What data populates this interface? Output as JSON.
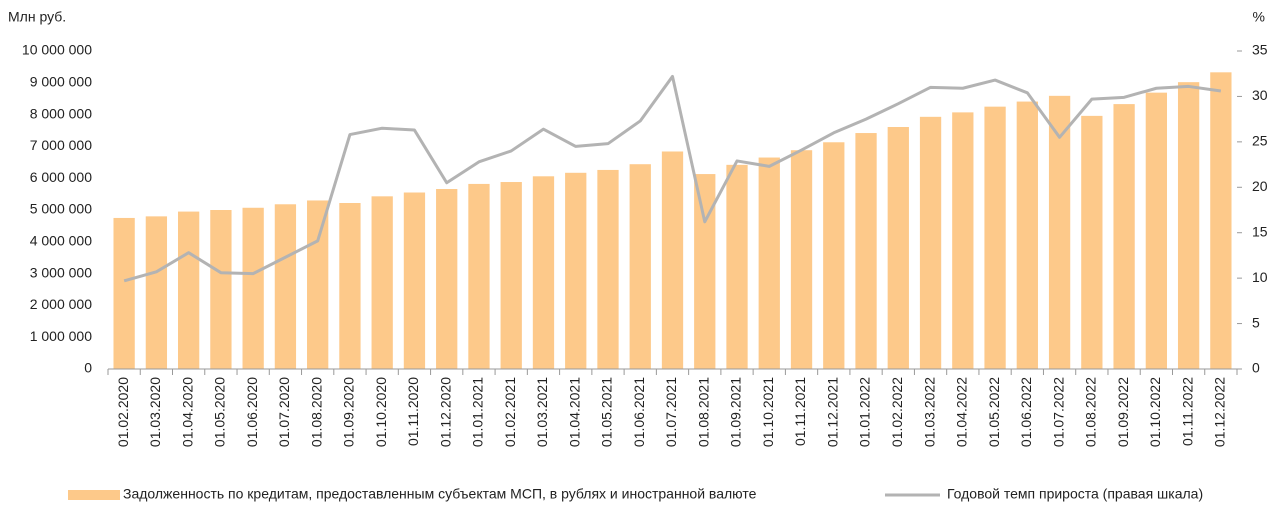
{
  "chart_data": {
    "type": "bar-line",
    "y_label": "Млн руб.",
    "y2_label": "%",
    "categories": [
      "01.02.2020",
      "01.03.2020",
      "01.04.2020",
      "01.05.2020",
      "01.06.2020",
      "01.07.2020",
      "01.08.2020",
      "01.09.2020",
      "01.10.2020",
      "01.11.2020",
      "01.12.2020",
      "01.01.2021",
      "01.02.2021",
      "01.03.2021",
      "01.04.2021",
      "01.05.2021",
      "01.06.2021",
      "01.07.2021",
      "01.08.2021",
      "01.09.2021",
      "01.10.2021",
      "01.11.2021",
      "01.12.2021",
      "01.01.2022",
      "01.02.2022",
      "01.03.2022",
      "01.04.2022",
      "01.05.2022",
      "01.06.2022",
      "01.07.2022",
      "01.08.2022",
      "01.09.2022",
      "01.10.2022",
      "01.11.2022",
      "01.12.2022"
    ],
    "series": [
      {
        "name": "Задолженность по кредитам, предоставленным субъектам МСП, в рублях и иностранной валюте",
        "type": "bar",
        "color": "#fdc98a",
        "values": [
          4750000,
          4800000,
          4950000,
          5000000,
          5070000,
          5180000,
          5300000,
          5220000,
          5430000,
          5550000,
          5660000,
          5820000,
          5880000,
          6060000,
          6170000,
          6260000,
          6440000,
          6840000,
          6130000,
          6420000,
          6650000,
          6880000,
          7130000,
          7420000,
          7610000,
          7930000,
          8070000,
          8250000,
          8410000,
          8590000,
          7960000,
          8330000,
          8690000,
          9020000,
          9330000
        ]
      },
      {
        "name": "Годовой темп прироста (правая шкала)",
        "type": "line",
        "axis": "y2",
        "color": "#b3b3b3",
        "values": [
          9.7,
          10.7,
          12.8,
          10.6,
          10.5,
          12.3,
          14.1,
          25.8,
          26.5,
          26.3,
          20.5,
          22.8,
          24.0,
          26.4,
          24.5,
          24.8,
          27.3,
          32.2,
          16.2,
          22.9,
          22.3,
          24.1,
          26.0,
          27.5,
          29.2,
          31.0,
          30.9,
          31.8,
          30.4,
          25.5,
          29.7,
          29.9,
          30.9,
          31.1,
          30.6
        ]
      }
    ],
    "ylim": [
      0,
      10000000
    ],
    "yticks": [
      0,
      {
        "value": 1000000,
        "label": "1 000 000"
      },
      {
        "value": 2000000,
        "label": "2 000 000"
      },
      {
        "value": 3000000,
        "label": "3 000 000"
      },
      {
        "value": 4000000,
        "label": "4 000 000"
      },
      {
        "value": 5000000,
        "label": "5 000 000"
      },
      {
        "value": 6000000,
        "label": "6 000 000"
      },
      {
        "value": 7000000,
        "label": "7 000 000"
      },
      {
        "value": 8000000,
        "label": "8 000 000"
      },
      {
        "value": 9000000,
        "label": "9 000 000"
      },
      {
        "value": 10000000,
        "label": "10 000 000"
      }
    ],
    "y2lim": [
      0,
      35
    ],
    "y2ticks": [
      0,
      5,
      10,
      15,
      20,
      25,
      30,
      35
    ]
  }
}
